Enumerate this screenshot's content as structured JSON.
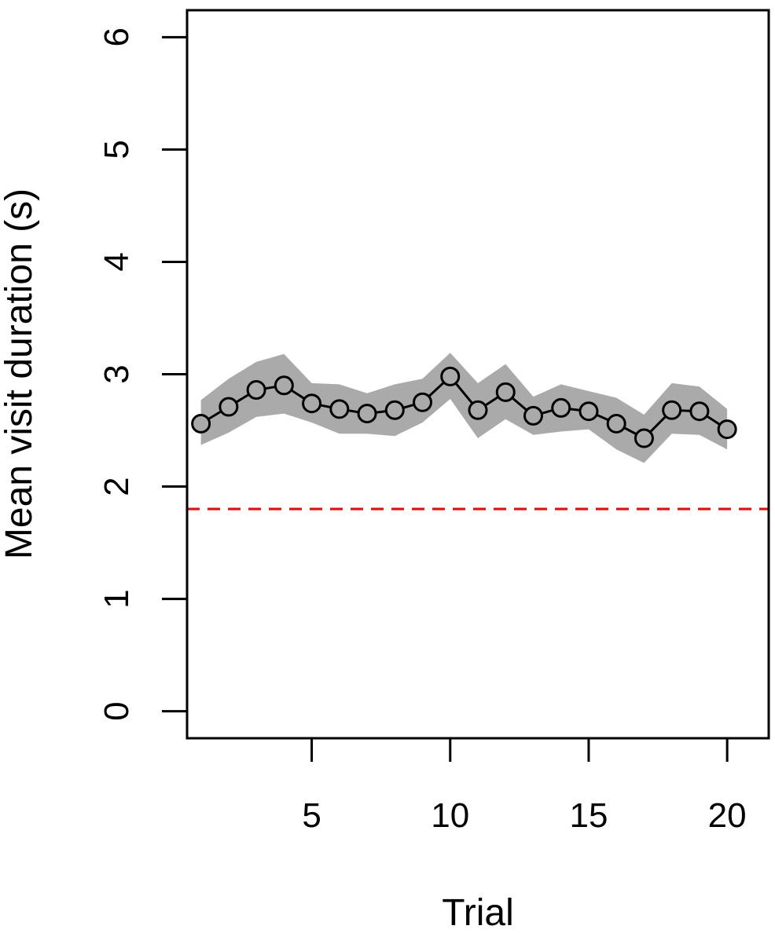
{
  "chart_data": {
    "type": "line",
    "title": "",
    "xlabel": "Trial",
    "ylabel": "Mean visit duration (s)",
    "xlim": [
      0.5,
      21.5
    ],
    "ylim": [
      -0.24,
      6.24
    ],
    "x_ticks": [
      5,
      10,
      15,
      20
    ],
    "y_ticks": [
      0,
      1,
      2,
      3,
      4,
      5,
      6
    ],
    "grid": false,
    "legend": "none",
    "reference_line": {
      "y": 1.8,
      "color": "#ff0000",
      "style": "dashed"
    },
    "series": [
      {
        "x": [
          1,
          2,
          3,
          4,
          5,
          6,
          7,
          8,
          9,
          10,
          11,
          12,
          13,
          14,
          15,
          16,
          17,
          18,
          19,
          20
        ],
        "values": [
          2.56,
          2.71,
          2.86,
          2.9,
          2.74,
          2.69,
          2.65,
          2.68,
          2.75,
          2.98,
          2.68,
          2.84,
          2.63,
          2.7,
          2.67,
          2.56,
          2.43,
          2.68,
          2.67,
          2.51
        ],
        "lower": [
          2.37,
          2.48,
          2.62,
          2.65,
          2.57,
          2.47,
          2.47,
          2.45,
          2.57,
          2.78,
          2.43,
          2.6,
          2.46,
          2.49,
          2.51,
          2.33,
          2.21,
          2.47,
          2.46,
          2.33
        ],
        "upper": [
          2.77,
          2.96,
          3.11,
          3.18,
          2.92,
          2.91,
          2.83,
          2.91,
          2.96,
          3.19,
          2.92,
          3.09,
          2.8,
          2.91,
          2.85,
          2.79,
          2.64,
          2.92,
          2.89,
          2.69
        ]
      }
    ],
    "colors": {
      "band": "#aaaaaa",
      "line": "#000000",
      "reference": "#ff0000"
    }
  }
}
